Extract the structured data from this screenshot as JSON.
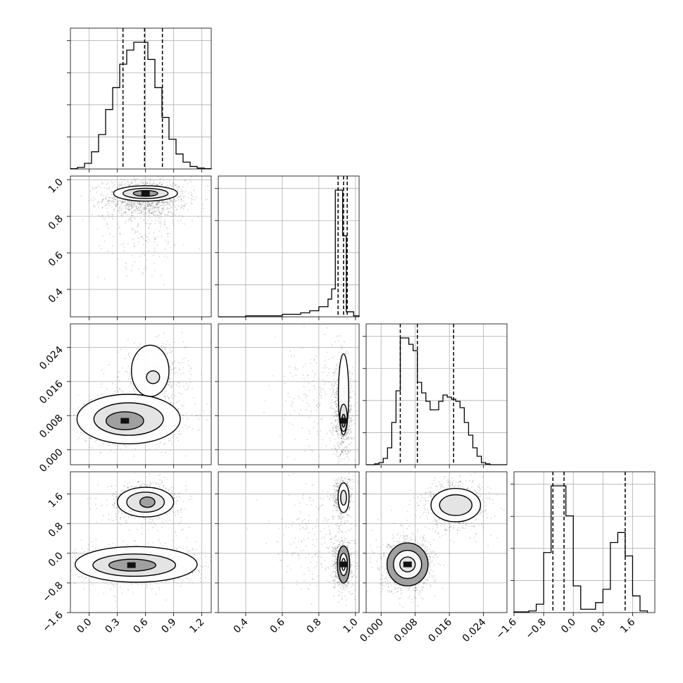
{
  "chart_data": {
    "type": "corner",
    "title": "",
    "parameters": [
      {
        "range": [
          -0.2,
          1.3
        ],
        "ticks": [
          "0.0",
          "0.3",
          "0.6",
          "0.9",
          "1.2"
        ],
        "tick_values": [
          0.0,
          0.3,
          0.6,
          0.9,
          1.2
        ],
        "quantiles": [
          0.36,
          0.59,
          0.78
        ],
        "hist_bin_edges": [
          -0.2,
          -0.125,
          -0.05,
          0.025,
          0.1,
          0.175,
          0.25,
          0.325,
          0.4,
          0.475,
          0.55,
          0.625,
          0.7,
          0.775,
          0.85,
          0.925,
          1.0,
          1.075,
          1.15,
          1.225,
          1.3
        ],
        "hist_counts": [
          1,
          5,
          18,
          55,
          110,
          190,
          260,
          335,
          380,
          405,
          405,
          350,
          260,
          165,
          95,
          48,
          22,
          8,
          3,
          1
        ]
      },
      {
        "range": [
          0.25,
          1.02
        ],
        "ticks": [
          "0.4",
          "0.6",
          "0.8",
          "1.0"
        ],
        "tick_values": [
          0.4,
          0.6,
          0.8,
          1.0
        ],
        "quantiles": [
          0.905,
          0.935,
          0.955
        ],
        "hist_bin_edges": [
          0.25,
          0.4,
          0.6,
          0.7,
          0.75,
          0.8,
          0.85,
          0.87,
          0.89,
          0.91,
          0.93,
          0.95,
          0.99,
          1.02
        ],
        "hist_counts": [
          0,
          2,
          5,
          8,
          12,
          20,
          35,
          55,
          250,
          250,
          160,
          10,
          2
        ]
      },
      {
        "range": [
          -0.0035,
          0.0295
        ],
        "ticks": [
          "0.000",
          "0.008",
          "0.016",
          "0.024"
        ],
        "tick_values": [
          0.0,
          0.008,
          0.016,
          0.024
        ],
        "quantiles": [
          0.0045,
          0.0085,
          0.017
        ],
        "hist_bin_edges": [
          -0.0035,
          -0.0015,
          -0.0005,
          0.0005,
          0.0015,
          0.0025,
          0.0035,
          0.0045,
          0.0055,
          0.0065,
          0.0075,
          0.0085,
          0.0095,
          0.0105,
          0.0115,
          0.0125,
          0.0135,
          0.0145,
          0.0155,
          0.0165,
          0.0175,
          0.0185,
          0.0195,
          0.0205,
          0.0215,
          0.0225,
          0.0235,
          0.0245,
          0.0255,
          0.0275,
          0.0295
        ],
        "hist_counts": [
          0,
          2,
          5,
          15,
          40,
          100,
          175,
          300,
          300,
          285,
          270,
          195,
          170,
          150,
          130,
          130,
          150,
          165,
          160,
          155,
          150,
          135,
          100,
          70,
          40,
          20,
          5,
          2,
          0,
          0
        ]
      },
      {
        "range": [
          -1.6,
          2.2
        ],
        "ticks": [
          "−1.6",
          "−0.8",
          "0.0",
          "0.8",
          "1.6"
        ],
        "tick_values": [
          -1.6,
          -0.8,
          0.0,
          0.8,
          1.6
        ],
        "quantiles": [
          -0.55,
          -0.25,
          1.4
        ],
        "hist_bin_edges": [
          -1.6,
          -1.2,
          -1.0,
          -0.8,
          -0.6,
          -0.4,
          -0.2,
          0.0,
          0.2,
          0.4,
          0.6,
          0.8,
          1.0,
          1.2,
          1.4,
          1.6,
          1.8,
          2.0,
          2.2
        ],
        "hist_counts": [
          2,
          5,
          25,
          180,
          380,
          380,
          290,
          80,
          10,
          10,
          30,
          70,
          210,
          240,
          170,
          50,
          5
        ]
      }
    ],
    "pairs": [
      {
        "x_param": 0,
        "y_param": 1,
        "y_ticks": [
          "0.4",
          "0.6",
          "0.8",
          "1.0"
        ],
        "levels": [
          {
            "cx": 0.6,
            "cy": 0.925,
            "rx": 0.34,
            "ry": 0.042
          },
          {
            "cx": 0.6,
            "cy": 0.925,
            "rx": 0.24,
            "ry": 0.028
          },
          {
            "cx": 0.6,
            "cy": 0.925,
            "rx": 0.13,
            "ry": 0.016
          }
        ],
        "clouds": [
          {
            "cx": 0.6,
            "cy": 0.9,
            "sx": 0.22,
            "sy": 0.05,
            "n": 1100
          },
          {
            "cx": 0.6,
            "cy": 0.8,
            "sx": 0.25,
            "sy": 0.14,
            "n": 300
          }
        ],
        "dense_cell": {
          "x": 0.6,
          "y": 0.925
        }
      },
      {
        "x_param": 0,
        "y_param": 2,
        "y_ticks": [
          "0.000",
          "0.008",
          "0.016",
          "0.024"
        ],
        "levels": [
          {
            "cx": 0.42,
            "cy": 0.0072,
            "rx": 0.55,
            "ry": 0.0058
          },
          {
            "cx": 0.42,
            "cy": 0.0072,
            "rx": 0.37,
            "ry": 0.0038
          },
          {
            "cx": 0.38,
            "cy": 0.0068,
            "rx": 0.2,
            "ry": 0.0021
          },
          {
            "cx": 0.65,
            "cy": 0.0185,
            "rx": 0.2,
            "ry": 0.006
          },
          {
            "cx": 0.68,
            "cy": 0.017,
            "rx": 0.07,
            "ry": 0.0015
          }
        ],
        "clouds": [
          {
            "cx": 0.45,
            "cy": 0.0072,
            "sx": 0.28,
            "sy": 0.003,
            "n": 900
          },
          {
            "cx": 0.68,
            "cy": 0.017,
            "sx": 0.17,
            "sy": 0.0037,
            "n": 600
          }
        ],
        "dense_cell": {
          "x": 0.38,
          "y": 0.0068
        }
      },
      {
        "x_param": 1,
        "y_param": 2,
        "y_ticks": [],
        "levels": [
          {
            "cx": 0.935,
            "cy": 0.013,
            "rx": 0.028,
            "ry": 0.0095
          },
          {
            "cx": 0.935,
            "cy": 0.0075,
            "rx": 0.02,
            "ry": 0.0032
          },
          {
            "cx": 0.935,
            "cy": 0.0068,
            "rx": 0.01,
            "ry": 0.0015
          }
        ],
        "clouds": [
          {
            "cx": 0.93,
            "cy": 0.009,
            "sx": 0.025,
            "sy": 0.0055,
            "n": 900
          },
          {
            "cx": 0.8,
            "cy": 0.012,
            "sx": 0.13,
            "sy": 0.007,
            "n": 200
          }
        ],
        "dense_cell": {
          "x": 0.935,
          "y": 0.0068
        }
      },
      {
        "x_param": 0,
        "y_param": 3,
        "y_ticks": [
          "−1.6",
          "−0.8",
          "0.0",
          "0.8",
          "1.6"
        ],
        "levels": [
          {
            "cx": 0.6,
            "cy": 1.38,
            "rx": 0.3,
            "ry": 0.4
          },
          {
            "cx": 0.6,
            "cy": 1.38,
            "rx": 0.2,
            "ry": 0.27
          },
          {
            "cx": 0.62,
            "cy": 1.38,
            "rx": 0.08,
            "ry": 0.14
          },
          {
            "cx": 0.5,
            "cy": -0.3,
            "rx": 0.65,
            "ry": 0.48
          },
          {
            "cx": 0.48,
            "cy": -0.32,
            "rx": 0.44,
            "ry": 0.3
          },
          {
            "cx": 0.46,
            "cy": -0.32,
            "rx": 0.25,
            "ry": 0.16
          }
        ],
        "clouds": [
          {
            "cx": 0.6,
            "cy": 1.4,
            "sx": 0.2,
            "sy": 0.28,
            "n": 600
          },
          {
            "cx": 0.5,
            "cy": -0.3,
            "sx": 0.32,
            "sy": 0.28,
            "n": 1000
          }
        ],
        "dense_cell": {
          "x": 0.45,
          "y": -0.32
        }
      },
      {
        "x_param": 1,
        "y_param": 3,
        "y_ticks": [],
        "levels": [
          {
            "cx": 0.935,
            "cy": 1.5,
            "rx": 0.03,
            "ry": 0.4
          },
          {
            "cx": 0.935,
            "cy": 1.5,
            "rx": 0.016,
            "ry": 0.2
          },
          {
            "cx": 0.935,
            "cy": -0.3,
            "rx": 0.034,
            "ry": 0.5
          },
          {
            "cx": 0.935,
            "cy": -0.3,
            "rx": 0.021,
            "ry": 0.3
          },
          {
            "cx": 0.935,
            "cy": -0.3,
            "rx": 0.01,
            "ry": 0.16
          }
        ],
        "clouds": [
          {
            "cx": 0.93,
            "cy": 1.5,
            "sx": 0.025,
            "sy": 0.28,
            "n": 500
          },
          {
            "cx": 0.93,
            "cy": -0.3,
            "sx": 0.025,
            "sy": 0.33,
            "n": 800
          },
          {
            "cx": 0.8,
            "cy": 0.6,
            "sx": 0.12,
            "sy": 0.9,
            "n": 250
          }
        ],
        "dense_cell": {
          "x": 0.935,
          "y": -0.3
        }
      },
      {
        "x_param": 2,
        "y_param": 3,
        "y_ticks": [],
        "levels": [
          {
            "cx": 0.0175,
            "cy": 1.3,
            "rx": 0.0058,
            "ry": 0.45
          },
          {
            "cx": 0.0175,
            "cy": 1.3,
            "rx": 0.0038,
            "ry": 0.28
          },
          {
            "cx": 0.0062,
            "cy": -0.3,
            "rx": 0.0048,
            "ry": 0.58
          },
          {
            "cx": 0.0062,
            "cy": -0.3,
            "rx": 0.0033,
            "ry": 0.38
          },
          {
            "cx": 0.0062,
            "cy": -0.3,
            "rx": 0.0018,
            "ry": 0.2
          }
        ],
        "clouds": [
          {
            "cx": 0.0175,
            "cy": 1.3,
            "sx": 0.004,
            "sy": 0.35,
            "n": 700
          },
          {
            "cx": 0.0062,
            "cy": -0.3,
            "sx": 0.0032,
            "sy": 0.38,
            "n": 900
          }
        ],
        "dense_cell": {
          "x": 0.0062,
          "y": -0.3
        }
      }
    ],
    "grid": true
  }
}
